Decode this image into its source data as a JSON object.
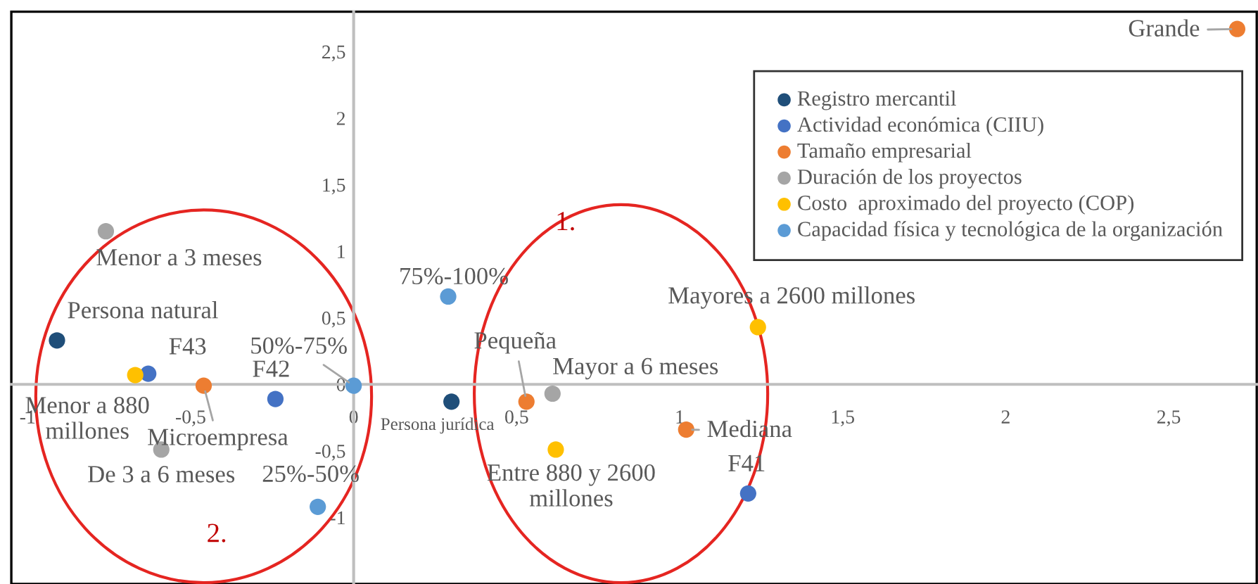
{
  "chart_data": {
    "type": "scatter",
    "series": [
      {
        "name": "Registro mercantil",
        "color": "#1f4e79",
        "x": [
          -0.91,
          0.3
        ],
        "values": [
          0.33,
          -0.13
        ]
      },
      {
        "name": "Actividad económica (CIIU)",
        "color": "#4472c4",
        "x": [
          -0.63,
          -0.24,
          1.21
        ],
        "values": [
          0.08,
          -0.11,
          -0.82
        ]
      },
      {
        "name": "Tamaño empresarial",
        "color": "#ed7d31",
        "x": [
          -0.46,
          0.53,
          1.02,
          2.71
        ],
        "values": [
          -0.01,
          -0.13,
          -0.34,
          2.67
        ]
      },
      {
        "name": "Duración de los proyectos",
        "color": "#a5a5a5",
        "x": [
          -0.76,
          -0.59,
          0.61
        ],
        "values": [
          1.15,
          -0.49,
          -0.07
        ]
      },
      {
        "name": "Costo  aproximado del proyecto (COP)",
        "color": "#ffc000",
        "x": [
          -0.67,
          0.62,
          1.24
        ],
        "values": [
          0.07,
          -0.49,
          0.43
        ]
      },
      {
        "name": "Capacidad física y tecnológica de la organización",
        "color": "#5b9bd5",
        "x": [
          0.0,
          0.29,
          -0.11
        ],
        "values": [
          -0.01,
          0.66,
          -0.92
        ]
      }
    ],
    "annotations": [
      {
        "text": "Persona natural",
        "x": -0.91,
        "y": 0.33
      },
      {
        "text": "Persona jurídica",
        "x": 0.3,
        "y": -0.13
      },
      {
        "text": "F43",
        "x": -0.63,
        "y": 0.08
      },
      {
        "text": "F42",
        "x": -0.24,
        "y": -0.11
      },
      {
        "text": "F41",
        "x": 1.21,
        "y": -0.82
      },
      {
        "text": "Microempresa",
        "x": -0.46,
        "y": -0.01
      },
      {
        "text": "Pequeña",
        "x": 0.53,
        "y": -0.13
      },
      {
        "text": "Mediana",
        "x": 1.02,
        "y": -0.34
      },
      {
        "text": "Grande",
        "x": 2.71,
        "y": 2.67
      },
      {
        "text": "Menor a 3 meses",
        "x": -0.76,
        "y": 1.15
      },
      {
        "text": "De 3 a 6 meses",
        "x": -0.59,
        "y": -0.49
      },
      {
        "text": "Mayor a 6 meses",
        "x": 0.61,
        "y": -0.07
      },
      {
        "text": "Menor a 880\nmillones",
        "x": -0.67,
        "y": 0.07
      },
      {
        "text": "Entre 880 y 2600\nmillones",
        "x": 0.62,
        "y": -0.49
      },
      {
        "text": "Mayores a 2600 millones",
        "x": 1.24,
        "y": 0.43
      },
      {
        "text": "50%-75%",
        "x": 0.0,
        "y": -0.01
      },
      {
        "text": "75%-100%",
        "x": 0.29,
        "y": 0.66
      },
      {
        "text": "25%-50%",
        "x": -0.11,
        "y": -0.92
      },
      "1.",
      "2."
    ],
    "xlim": [
      -1.05,
      2.77
    ],
    "ylim": [
      -1.5,
      2.8
    ],
    "xticks": [
      {
        "value": -1,
        "label": "-1"
      },
      {
        "value": -0.5,
        "label": "-0,5"
      },
      0,
      {
        "value": 0.5,
        "label": "0,5"
      },
      1,
      {
        "value": 1.5,
        "label": "1,5"
      },
      2,
      {
        "value": 2.5,
        "label": "2,5"
      }
    ],
    "yticks": [
      {
        "value": -1,
        "label": "-1"
      },
      {
        "value": -0.5,
        "label": "-0,5"
      },
      0,
      {
        "value": 0.5,
        "label": "0,5"
      },
      1,
      {
        "value": 1.5,
        "label": "1,5"
      },
      2,
      {
        "value": 2.5,
        "label": "2,5"
      }
    ],
    "marker": "circle",
    "grid": false,
    "legend": "top right"
  }
}
